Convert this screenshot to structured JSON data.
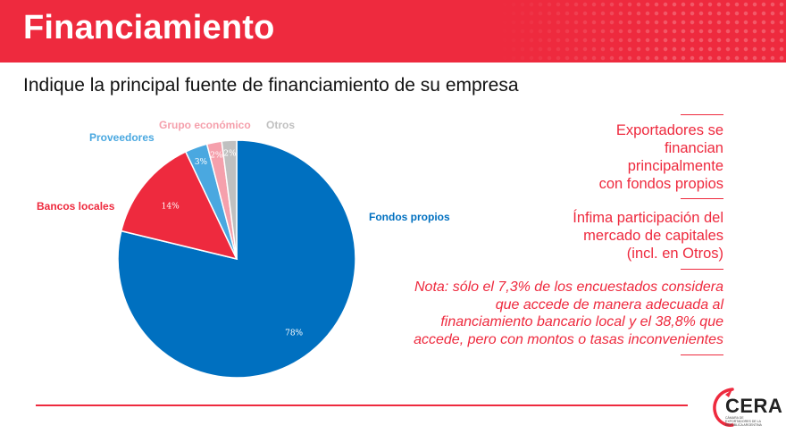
{
  "header": {
    "title": "Financiamiento"
  },
  "subtitle": "Indique la principal fuente de financiamiento de su empresa",
  "chart_data": {
    "type": "pie",
    "title": "",
    "slices": [
      {
        "label": "Fondos propios",
        "value": 78,
        "value_label": "78%",
        "color": "#0070c0"
      },
      {
        "label": "Bancos locales",
        "value": 14,
        "value_label": "14%",
        "color": "#ee2a3e"
      },
      {
        "label": "Proveedores",
        "value": 3,
        "value_label": "3%",
        "color": "#4aa8e0"
      },
      {
        "label": "Grupo económico",
        "value": 2,
        "value_label": "2%",
        "color": "#f5a0ac"
      },
      {
        "label": "Otros",
        "value": 2,
        "value_label": "2%",
        "color": "#c0c0c0"
      }
    ]
  },
  "notes": {
    "note1": [
      "Exportadores se",
      "financian",
      "principalmente",
      "con fondos propios"
    ],
    "note2": [
      "Ínfima participación del",
      "mercado de capitales",
      "(incl. en Otros)"
    ],
    "note3": [
      "Nota: sólo el 7,3% de los encuestados considera",
      "que accede de manera adecuada al",
      "financiamiento bancario local y el 38,8% que",
      "accede, pero con montos o tasas inconvenientes"
    ]
  },
  "logo": {
    "name": "CERA",
    "subtitle": "CÁMARA DE EXPORTADORES DE LA REPÚBLICA ARGENTINA",
    "accent": "#ee2a3e"
  },
  "colors": {
    "accent": "#ee2a3e",
    "primary_blue": "#0070c0"
  }
}
